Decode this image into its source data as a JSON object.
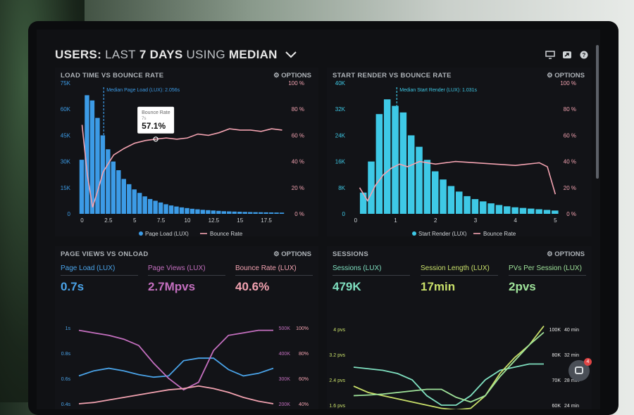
{
  "header": {
    "part1": "USERS:",
    "part2": "LAST",
    "part3": "7 DAYS",
    "part4": "USING",
    "part5": "MEDIAN"
  },
  "icons": [
    "monitor-icon",
    "share-icon",
    "help-icon"
  ],
  "panels": {
    "load_time": {
      "title": "LOAD TIME VS BOUNCE RATE",
      "options": "⚙ OPTIONS",
      "median_label": "Median Page Load (LUX): 2.056s",
      "tooltip_title": "Bounce Rate",
      "tooltip_sub": "7s",
      "tooltip_value": "57.1%",
      "legend": [
        "Page Load (LUX)",
        "Bounce Rate"
      ]
    },
    "start_render": {
      "title": "START RENDER VS BOUNCE RATE",
      "options": "⚙ OPTIONS",
      "median_label": "Median Start Render (LUX): 1.031s",
      "legend": [
        "Start Render (LUX)",
        "Bounce Rate"
      ]
    },
    "page_views": {
      "title": "PAGE VIEWS VS ONLOAD",
      "options": "⚙ OPTIONS",
      "metrics": [
        {
          "label": "Page Load (LUX)",
          "value": "0.7s",
          "color": "#4aa3e8"
        },
        {
          "label": "Page Views (LUX)",
          "value": "2.7Mpvs",
          "color": "#c46fbf"
        },
        {
          "label": "Bounce Rate (LUX)",
          "value": "40.6%",
          "color": "#f2a2b0"
        }
      ]
    },
    "sessions": {
      "title": "SESSIONS",
      "options": "⚙ OPTIONS",
      "metrics": [
        {
          "label": "Sessions (LUX)",
          "value": "479K",
          "color": "#7fe0c0"
        },
        {
          "label": "Session Length (LUX)",
          "value": "17min",
          "color": "#c9e06a"
        },
        {
          "label": "PVs Per Session (LUX)",
          "value": "2pvs",
          "color": "#9fe39a"
        }
      ]
    }
  },
  "chat": {
    "badge": "4"
  },
  "chart_data": [
    {
      "type": "bar",
      "title": "LOAD TIME VS BOUNCE RATE",
      "x_ticks": [
        "0",
        "2.5",
        "5",
        "7.5",
        "10",
        "12.5",
        "15",
        "17.5"
      ],
      "y_left_ticks": [
        "0",
        "15K",
        "30K",
        "45K",
        "60K",
        "75K"
      ],
      "y_right_ticks": [
        "0 %",
        "20 %",
        "40 %",
        "60 %",
        "80 %",
        "100 %"
      ],
      "ylim": [
        0,
        75000
      ],
      "series": [
        {
          "name": "Page Load (LUX)",
          "type": "bar",
          "x": [
            0,
            0.5,
            1,
            1.5,
            2,
            2.5,
            3,
            3.5,
            4,
            4.5,
            5,
            5.5,
            6,
            6.5,
            7,
            7.5,
            8,
            8.5,
            9,
            9.5,
            10,
            10.5,
            11,
            11.5,
            12,
            12.5,
            13,
            13.5,
            14,
            14.5,
            15,
            15.5,
            16,
            16.5,
            17,
            17.5,
            18,
            18.5,
            19
          ],
          "values": [
            31000,
            68000,
            65000,
            55000,
            45000,
            37000,
            30000,
            25000,
            20000,
            17000,
            14000,
            12000,
            10000,
            8500,
            7500,
            6500,
            5500,
            4800,
            4200,
            3700,
            3300,
            2900,
            2600,
            2300,
            2100,
            1900,
            1700,
            1500,
            1400,
            1300,
            1200,
            1100,
            1000,
            950,
            900,
            850,
            800,
            750,
            700
          ]
        },
        {
          "name": "Bounce Rate",
          "type": "line",
          "x": [
            0,
            0.5,
            1,
            1.5,
            2,
            3,
            4,
            5,
            6,
            7,
            8,
            9,
            10,
            11,
            12,
            13,
            14,
            15,
            16,
            17,
            18,
            19
          ],
          "values": [
            68,
            30,
            5,
            18,
            32,
            45,
            50,
            54,
            56,
            57.1,
            58,
            57,
            58,
            61,
            60,
            62,
            65,
            64,
            64,
            63,
            65,
            64
          ]
        }
      ]
    },
    {
      "type": "bar",
      "title": "START RENDER VS BOUNCE RATE",
      "x_ticks": [
        "0",
        "1",
        "2",
        "3",
        "4",
        "5"
      ],
      "y_left_ticks": [
        "0",
        "8K",
        "16K",
        "24K",
        "32K",
        "40K"
      ],
      "y_right_ticks": [
        "0 %",
        "20 %",
        "40 %",
        "60 %",
        "80 %",
        "100 %"
      ],
      "ylim": [
        0,
        40000
      ],
      "series": [
        {
          "name": "Start Render (LUX)",
          "type": "bar",
          "x": [
            0.2,
            0.4,
            0.6,
            0.8,
            1.0,
            1.2,
            1.4,
            1.6,
            1.8,
            2.0,
            2.2,
            2.4,
            2.6,
            2.8,
            3.0,
            3.2,
            3.4,
            3.6,
            3.8,
            4.0,
            4.2,
            4.4,
            4.6,
            4.8,
            5.0
          ],
          "values": [
            6500,
            16000,
            30500,
            35000,
            33000,
            31000,
            24000,
            20500,
            16500,
            13000,
            10500,
            8500,
            6800,
            5400,
            4500,
            3800,
            3200,
            2700,
            2300,
            2000,
            1800,
            1600,
            1400,
            1200,
            1000
          ]
        },
        {
          "name": "Bounce Rate",
          "type": "line",
          "x": [
            0.1,
            0.3,
            0.5,
            0.7,
            0.9,
            1.1,
            1.3,
            1.6,
            2,
            2.5,
            3,
            3.5,
            4,
            4.3,
            4.6,
            4.8,
            5
          ],
          "values": [
            20,
            10,
            22,
            30,
            35,
            38,
            36,
            40,
            38,
            40,
            39,
            38,
            37,
            38,
            39,
            36,
            15
          ]
        }
      ]
    },
    {
      "type": "line",
      "title": "PAGE VIEWS VS ONLOAD",
      "y_left_ticks": [
        "0.4s",
        "0.6s",
        "0.8s",
        "1s"
      ],
      "y_right_ticks_1": [
        "200K",
        "300K",
        "400K",
        "500K"
      ],
      "y_right_ticks_2": [
        "40%",
        "60%",
        "80%",
        "100%"
      ],
      "series": [
        {
          "name": "Page Load (LUX)",
          "values": [
            0.62,
            0.66,
            0.68,
            0.66,
            0.63,
            0.61,
            0.62,
            0.74,
            0.76,
            0.76,
            0.67,
            0.62,
            0.64,
            0.68
          ]
        },
        {
          "name": "Page Views (LUX)",
          "values": [
            490,
            480,
            470,
            455,
            430,
            360,
            300,
            255,
            285,
            410,
            470,
            480,
            490,
            490
          ]
        },
        {
          "name": "Bounce Rate (LUX)",
          "values": [
            40,
            41,
            43,
            45,
            47,
            49,
            51,
            52,
            54,
            52,
            49,
            45,
            42,
            40
          ]
        }
      ]
    },
    {
      "type": "line",
      "title": "SESSIONS",
      "y_left_ticks": [
        "1.6 pvs",
        "2.4 pvs",
        "3.2 pvs",
        "4 pvs"
      ],
      "y_right_ticks_1": [
        "60K",
        "70K",
        "80K",
        "100K"
      ],
      "y_right_ticks_2": [
        "24 min",
        "28 min",
        "32 min",
        "40 min"
      ],
      "series": [
        {
          "name": "Sessions (LUX)",
          "values": [
            2.8,
            2.75,
            2.7,
            2.6,
            2.4,
            1.9,
            1.6,
            1.6,
            1.9,
            2.4,
            2.7,
            2.8,
            2.9,
            2.9
          ]
        },
        {
          "name": "Session Length (LUX)",
          "values": [
            2.2,
            2.0,
            1.9,
            1.8,
            1.7,
            1.6,
            1.5,
            1.45,
            1.5,
            1.9,
            2.6,
            3.1,
            3.5,
            4.1
          ]
        },
        {
          "name": "PVs Per Session (LUX)",
          "values": [
            1.9,
            1.92,
            1.95,
            2.0,
            2.05,
            2.1,
            2.1,
            1.85,
            1.7,
            1.9,
            2.5,
            3.0,
            3.5,
            3.9
          ]
        }
      ]
    }
  ]
}
